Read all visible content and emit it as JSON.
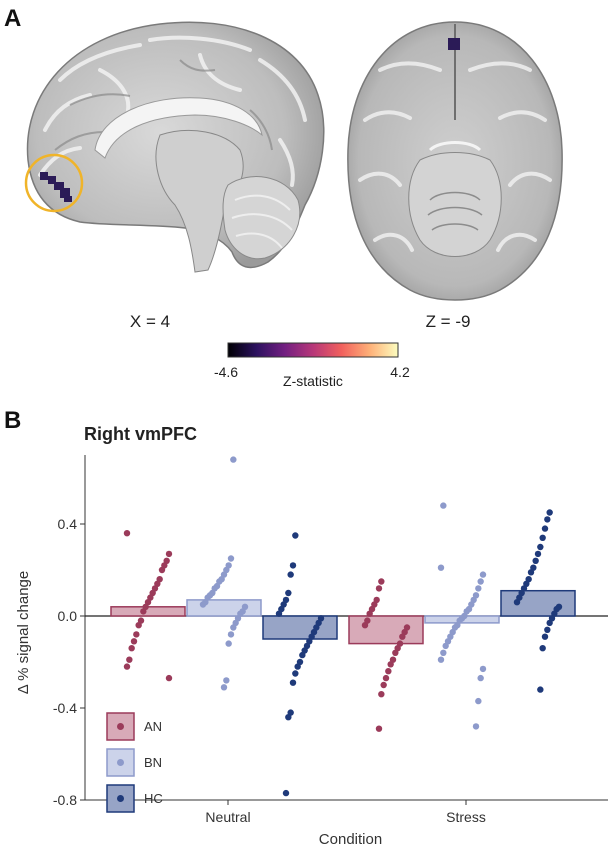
{
  "panel_a": {
    "label": "A",
    "sagittal_caption": "X = 4",
    "axial_caption": "Z = -9",
    "colorbar": {
      "min_label": "-4.6",
      "max_label": "4.2",
      "title": "Z-statistic",
      "stops": [
        "#000004",
        "#2c115f",
        "#721f81",
        "#b73779",
        "#f1605d",
        "#feb078",
        "#fcfdbf"
      ]
    },
    "highlight_color": "#f0b429",
    "cluster_color": "#2b1b57"
  },
  "panel_b": {
    "label": "B",
    "chart_data": {
      "type": "bar",
      "title": "Right vmPFC",
      "xlabel": "Condition",
      "ylabel": "Δ % signal change",
      "ylim": [
        -0.8,
        0.7
      ],
      "yticks": [
        -0.8,
        -0.4,
        0.0,
        0.4
      ],
      "ytick_labels": [
        "-0.8",
        "-0.4",
        "0.0",
        "0.4"
      ],
      "categories": [
        "Neutral",
        "Stress"
      ],
      "legend_position": "bottom-left",
      "series": [
        {
          "name": "AN",
          "color": "#9b3b5a",
          "fill": "#d8aab8",
          "means": [
            0.04,
            -0.12
          ],
          "points": [
            [
              0.36,
              0.27,
              0.24,
              0.22,
              0.2,
              0.16,
              0.14,
              0.12,
              0.1,
              0.08,
              0.06,
              0.04,
              0.02,
              -0.02,
              -0.04,
              -0.08,
              -0.11,
              -0.14,
              -0.19,
              -0.22,
              -0.27
            ],
            [
              0.15,
              0.12,
              0.07,
              0.05,
              0.03,
              0.01,
              -0.02,
              -0.04,
              -0.05,
              -0.07,
              -0.09,
              -0.12,
              -0.14,
              -0.16,
              -0.19,
              -0.21,
              -0.24,
              -0.27,
              -0.3,
              -0.34,
              -0.49
            ]
          ]
        },
        {
          "name": "BN",
          "color": "#8d9acb",
          "fill": "#ccd3ea",
          "means": [
            0.07,
            -0.03
          ],
          "points": [
            [
              0.68,
              0.25,
              0.22,
              0.2,
              0.18,
              0.16,
              0.15,
              0.13,
              0.12,
              0.1,
              0.09,
              0.08,
              0.06,
              0.05,
              0.04,
              0.02,
              0.01,
              -0.01,
              -0.03,
              -0.05,
              -0.08,
              -0.12,
              -0.28,
              -0.31
            ],
            [
              0.48,
              0.21,
              0.18,
              0.15,
              0.12,
              0.09,
              0.07,
              0.05,
              0.03,
              0.02,
              0.0,
              -0.01,
              -0.02,
              -0.04,
              -0.05,
              -0.07,
              -0.09,
              -0.11,
              -0.13,
              -0.16,
              -0.19,
              -0.23,
              -0.27,
              -0.37,
              -0.48
            ]
          ]
        },
        {
          "name": "HC",
          "color": "#1f3a7a",
          "fill": "#97a4c6",
          "means": [
            -0.1,
            0.11
          ],
          "points": [
            [
              0.35,
              0.22,
              0.18,
              0.1,
              0.07,
              0.05,
              0.03,
              0.01,
              -0.01,
              -0.03,
              -0.05,
              -0.07,
              -0.09,
              -0.11,
              -0.13,
              -0.15,
              -0.17,
              -0.2,
              -0.22,
              -0.25,
              -0.29,
              -0.42,
              -0.44,
              -0.77
            ],
            [
              0.45,
              0.42,
              0.38,
              0.34,
              0.3,
              0.27,
              0.24,
              0.21,
              0.19,
              0.16,
              0.14,
              0.12,
              0.1,
              0.08,
              0.06,
              0.04,
              0.03,
              0.01,
              -0.01,
              -0.03,
              -0.06,
              -0.09,
              -0.14,
              -0.32
            ]
          ]
        }
      ]
    }
  }
}
